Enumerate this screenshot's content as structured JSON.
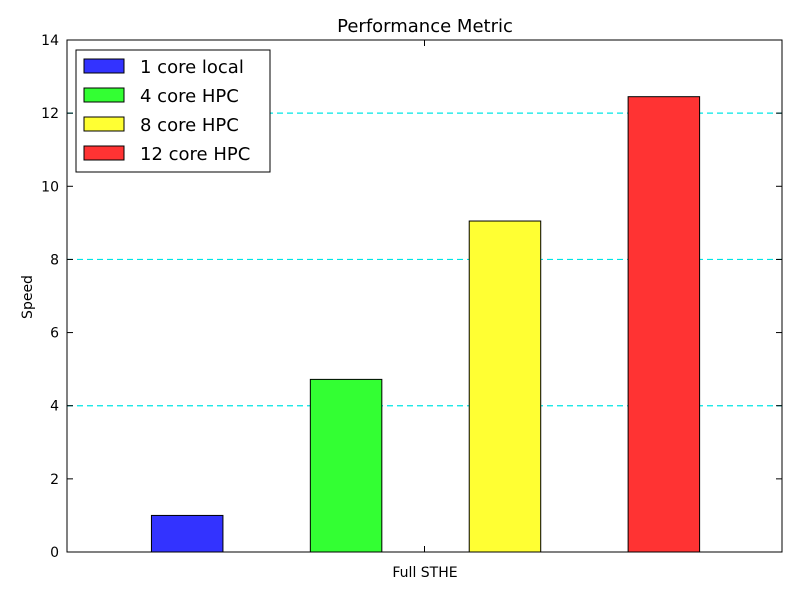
{
  "chart_data": {
    "type": "bar",
    "title": "Performance Metric",
    "xlabel": "Full STHE",
    "ylabel": "Speed",
    "ylim": [
      0,
      14
    ],
    "yticks": [
      0,
      2,
      4,
      6,
      8,
      10,
      12,
      14
    ],
    "grid": {
      "axis": "y",
      "lines": [
        4,
        8,
        12
      ],
      "style": "dashed",
      "color": "#00e5e5"
    },
    "legend_position": "top-left",
    "series": [
      {
        "name": "1 core local",
        "value": 1.0,
        "color": "#3333ff"
      },
      {
        "name": "4 core HPC",
        "value": 4.72,
        "color": "#33ff33"
      },
      {
        "name": "8 core HPC",
        "value": 9.05,
        "color": "#ffff33"
      },
      {
        "name": "12 core HPC",
        "value": 12.45,
        "color": "#ff3333"
      }
    ]
  }
}
